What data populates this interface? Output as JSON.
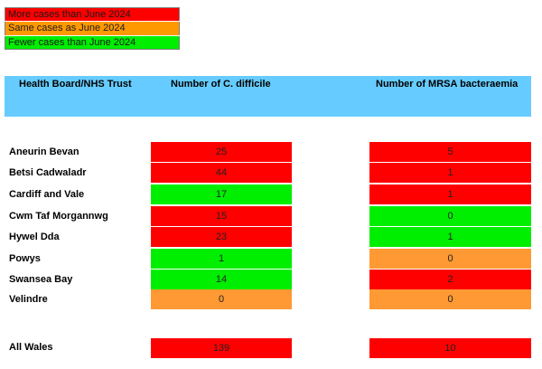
{
  "legend": {
    "more_label": "More cases than June 2024",
    "same_label": "Same cases as June 2024",
    "fewer_label": "Fewer cases than June 2024",
    "colors": {
      "more": "#ff0000",
      "same": "#ff9900",
      "fewer": "#00ee00"
    }
  },
  "header": {
    "board_label": "Health Board/NHS Trust",
    "cdiff_label": "Number of C. difficile",
    "mrsa_label": "Number of MRSA bacteraemia",
    "band_color": "#66ccff"
  },
  "rows": [
    {
      "name": "Aneurin Bevan",
      "cdiff": "25",
      "cdiff_status": "more",
      "mrsa": "5",
      "mrsa_status": "more"
    },
    {
      "name": "Betsi Cadwaladr",
      "cdiff": "44",
      "cdiff_status": "more",
      "mrsa": "1",
      "mrsa_status": "more"
    },
    {
      "name": "Cardiff and Vale",
      "cdiff": "17",
      "cdiff_status": "fewer",
      "mrsa": "1",
      "mrsa_status": "more"
    },
    {
      "name": "Cwm Taf Morgannwg",
      "cdiff": "15",
      "cdiff_status": "more",
      "mrsa": "0",
      "mrsa_status": "fewer"
    },
    {
      "name": "Hywel Dda",
      "cdiff": "23",
      "cdiff_status": "more",
      "mrsa": "1",
      "mrsa_status": "fewer"
    },
    {
      "name": "Powys",
      "cdiff": "1",
      "cdiff_status": "fewer",
      "mrsa": "0",
      "mrsa_status": "same"
    },
    {
      "name": "Swansea Bay",
      "cdiff": "14",
      "cdiff_status": "fewer",
      "mrsa": "2",
      "mrsa_status": "more"
    },
    {
      "name": "Velindre",
      "cdiff": "0",
      "cdiff_status": "same",
      "mrsa": "0",
      "mrsa_status": "same"
    }
  ],
  "total": {
    "name": "All Wales",
    "cdiff": "139",
    "cdiff_status": "more",
    "mrsa": "10",
    "mrsa_status": "more"
  }
}
